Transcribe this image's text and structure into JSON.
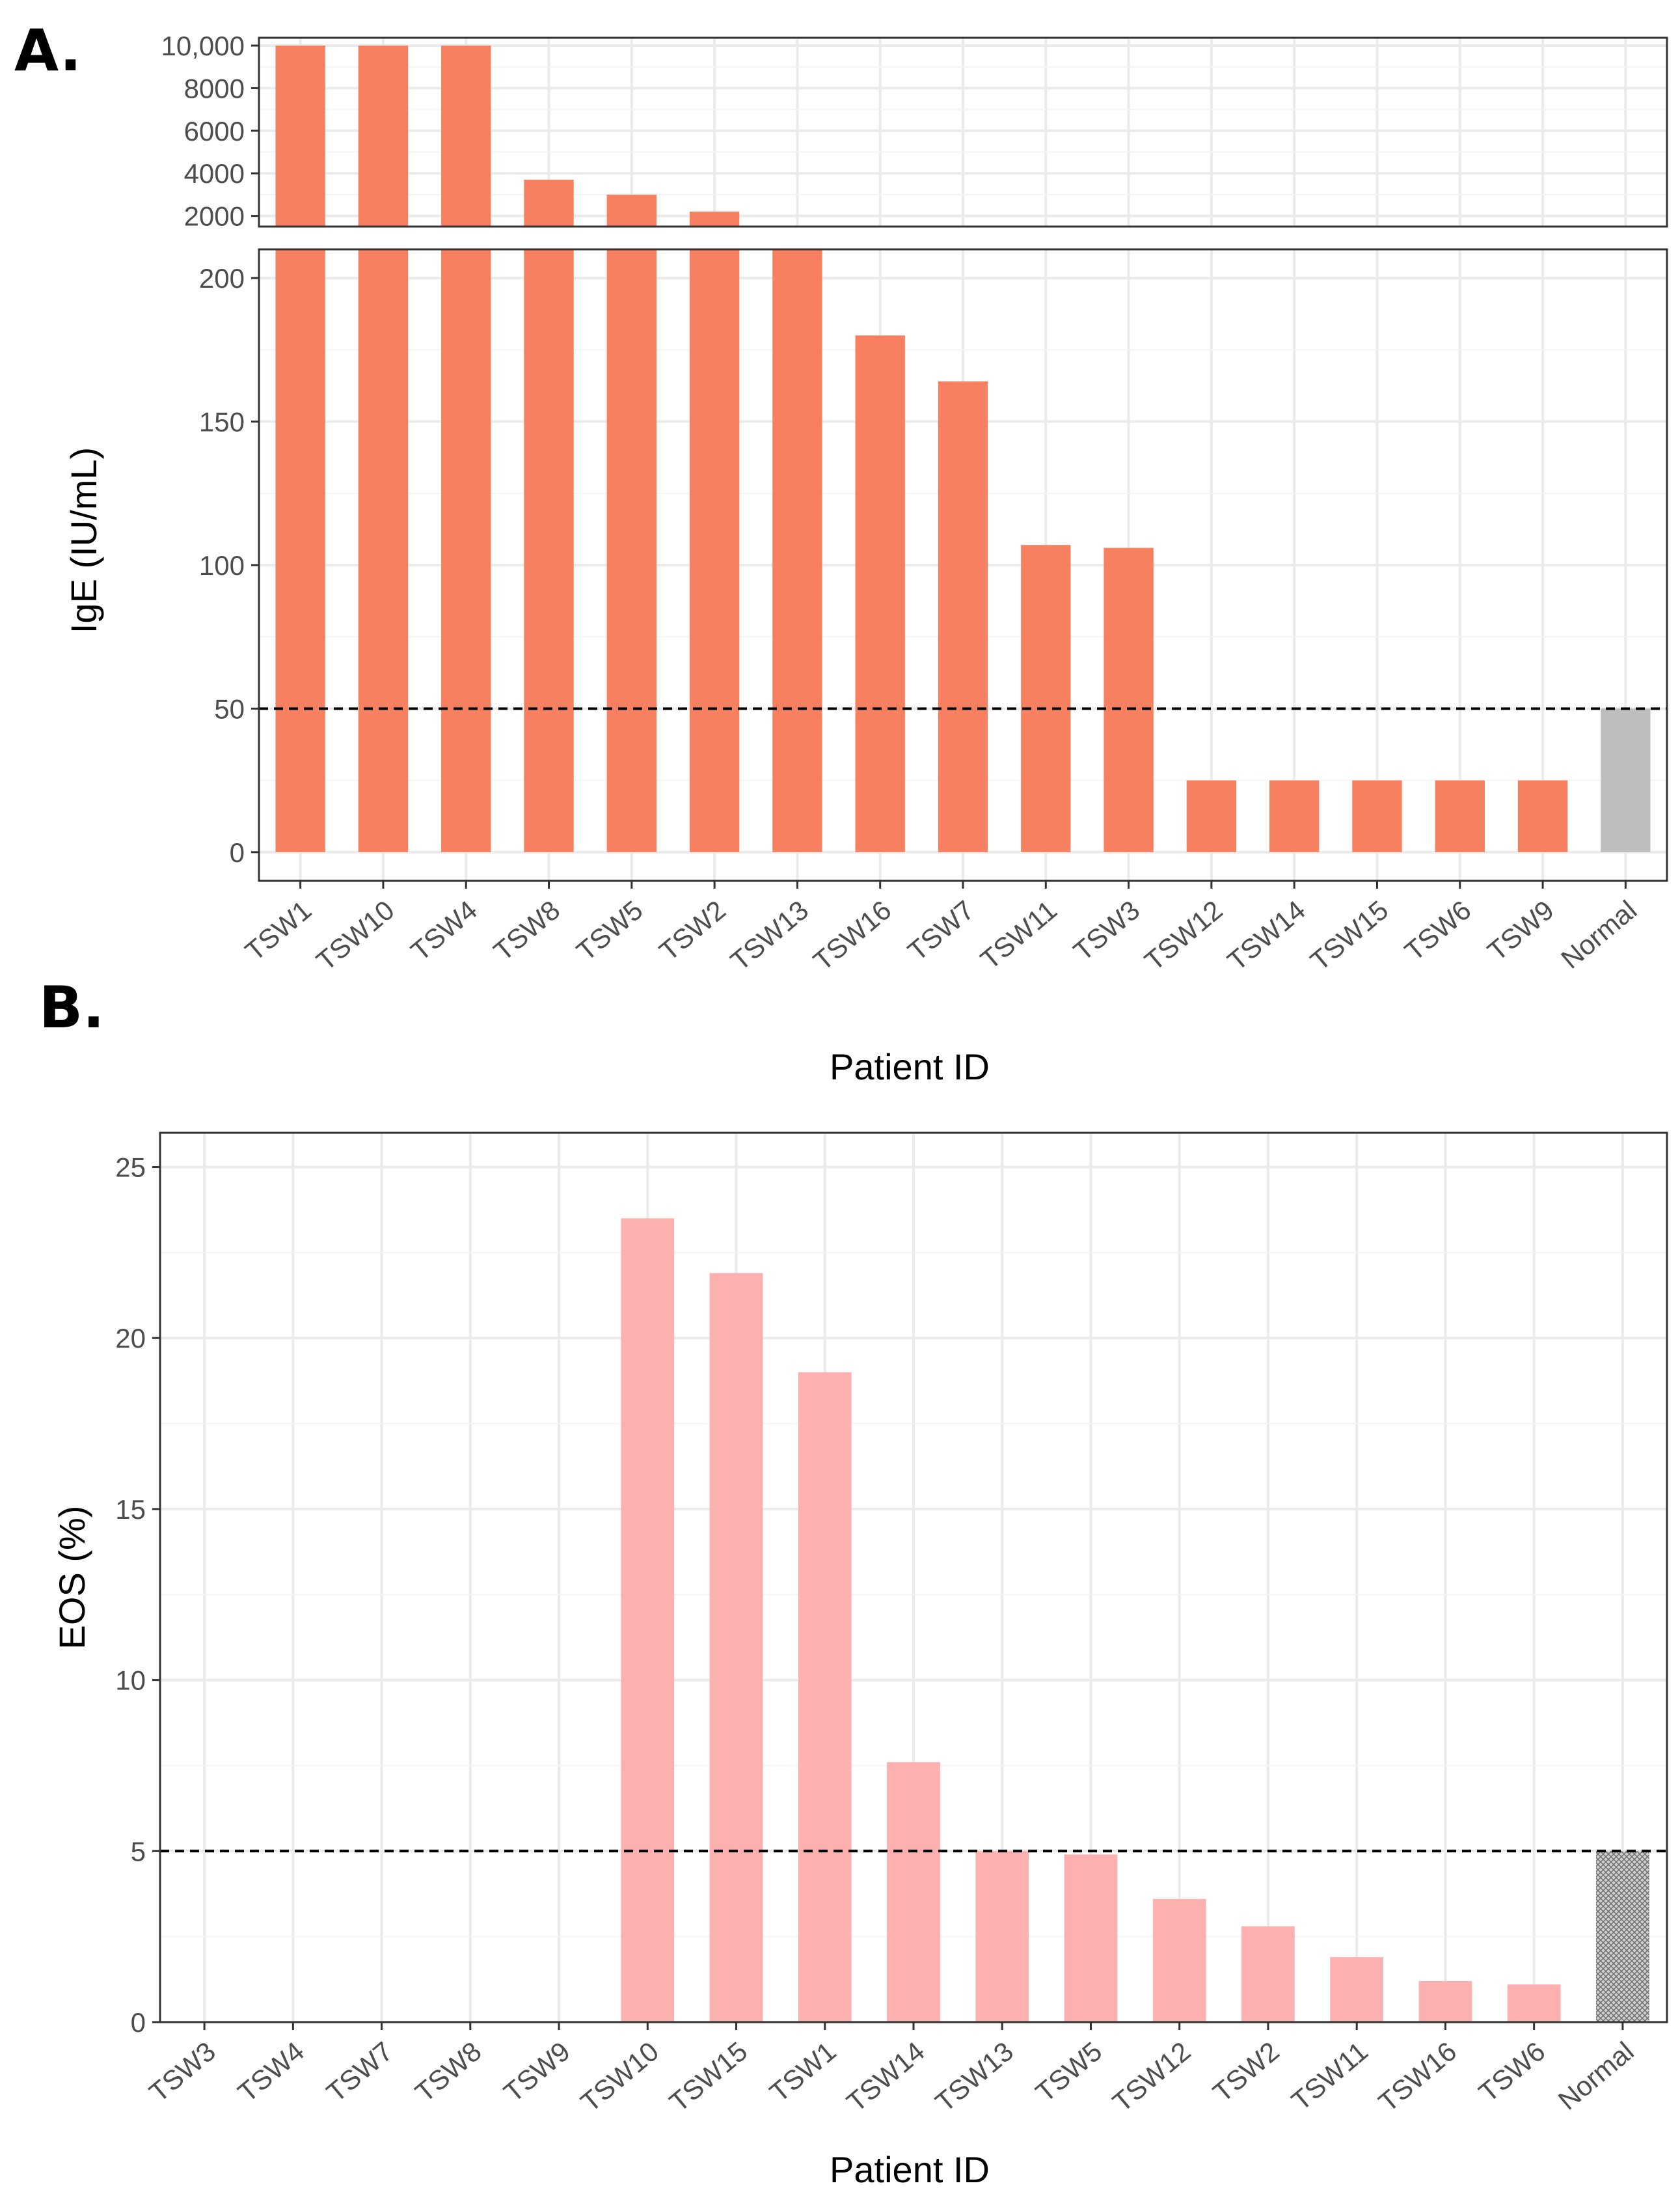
{
  "figure": {
    "panel_a_label": "A.",
    "panel_b_label": "B."
  },
  "chart_data": [
    {
      "type": "bar",
      "panel": "A.",
      "title": "",
      "xlabel": "Patient ID",
      "ylabel": "IgE (IU/mL)",
      "categories": [
        "TSW1",
        "TSW10",
        "TSW4",
        "TSW8",
        "TSW5",
        "TSW2",
        "TSW13",
        "TSW16",
        "TSW7",
        "TSW11",
        "TSW3",
        "TSW12",
        "TSW14",
        "TSW15",
        "TSW6",
        "TSW9",
        "Normal"
      ],
      "values": [
        10000,
        10000,
        10000,
        3700,
        3000,
        2200,
        210,
        180,
        164,
        107,
        106,
        25,
        25,
        25,
        25,
        25,
        50
      ],
      "colors": [
        "#f6805f",
        "#f6805f",
        "#f6805f",
        "#f6805f",
        "#f6805f",
        "#f6805f",
        "#f6805f",
        "#f6805f",
        "#f6805f",
        "#f6805f",
        "#f6805f",
        "#f6805f",
        "#f6805f",
        "#f6805f",
        "#f6805f",
        "#f6805f",
        "#bdbdbd"
      ],
      "axis_break": true,
      "upper_ylim": [
        1500,
        10000
      ],
      "upper_yticks": [
        2000,
        4000,
        6000,
        8000,
        10000
      ],
      "upper_ytick_labels": [
        "2000",
        "4000",
        "6000",
        "8000",
        "10,000"
      ],
      "lower_ylim": [
        -10,
        210
      ],
      "lower_yticks": [
        0,
        50,
        100,
        150,
        200
      ],
      "lower_ytick_labels": [
        "0",
        "50",
        "100",
        "150",
        "200"
      ],
      "reference_line": 50,
      "grid": true,
      "legend": "none"
    },
    {
      "type": "bar",
      "panel": "B.",
      "title": "",
      "xlabel": "Patient ID",
      "ylabel": "EOS (%)",
      "categories": [
        "TSW3",
        "TSW4",
        "TSW7",
        "TSW8",
        "TSW9",
        "TSW10",
        "TSW15",
        "TSW1",
        "TSW14",
        "TSW13",
        "TSW5",
        "TSW12",
        "TSW2",
        "TSW11",
        "TSW16",
        "TSW6",
        "Normal"
      ],
      "values": [
        0,
        0,
        0,
        0,
        0,
        23.5,
        21.9,
        19.0,
        7.6,
        5.0,
        4.9,
        3.6,
        2.8,
        1.9,
        1.2,
        1.1,
        5.0
      ],
      "colors": [
        "#fdb0b0",
        "#fdb0b0",
        "#fdb0b0",
        "#fdb0b0",
        "#fdb0b0",
        "#fdb0b0",
        "#fdb0b0",
        "#fdb0b0",
        "#fdb0b0",
        "#fdb0b0",
        "#fdb0b0",
        "#fdb0b0",
        "#fdb0b0",
        "#fdb0b0",
        "#fdb0b0",
        "#fdb0b0",
        "#9a9a9a"
      ],
      "ylim": [
        0,
        26
      ],
      "yticks": [
        0,
        5,
        10,
        15,
        20,
        25
      ],
      "ytick_labels": [
        "0",
        "5",
        "10",
        "15",
        "20",
        "25"
      ],
      "reference_line": 5,
      "grid": true,
      "legend": "none"
    }
  ]
}
